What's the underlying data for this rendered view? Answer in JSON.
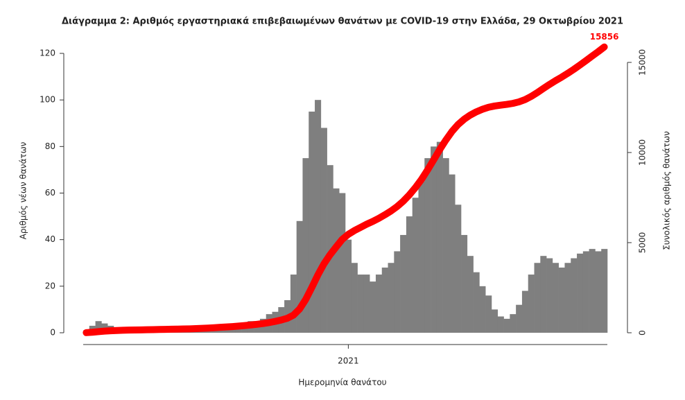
{
  "chart_data": {
    "type": "bar",
    "title": "Διάγραμμα 2: Αριθμός εργαστηριακά επιβεβαιωμένων θανάτων με COVID-19 στην Ελλάδα, 29 Οκτωβρίου 2021",
    "x_label": "Ημερομηνία θανάτου",
    "y_label": "Αριθμός νέων θανάτων",
    "y2_label": "Συνολικός αριθμός θανάτων",
    "categories": [
      null,
      null,
      null,
      null,
      null,
      null,
      null,
      null,
      null,
      null,
      null,
      null,
      null,
      null,
      null,
      null,
      null,
      null,
      null,
      null,
      null,
      null,
      null,
      null,
      null,
      null,
      null,
      null,
      null,
      null,
      null,
      null,
      null,
      null,
      null,
      null,
      null,
      null,
      null,
      null,
      null,
      null,
      null,
      "2021",
      null,
      null,
      null,
      null,
      null,
      null,
      null,
      null,
      null,
      null,
      null,
      null,
      null,
      null,
      null,
      null,
      null,
      null,
      null,
      null,
      null,
      null,
      null,
      null,
      null,
      null,
      null,
      null,
      null,
      null,
      null,
      null,
      null,
      null,
      null,
      null,
      null,
      null,
      null,
      null,
      null,
      null
    ],
    "series": [
      {
        "type": "bar",
        "color": "#7f7f7f",
        "values": [
          1,
          3,
          5,
          4,
          3,
          2,
          2,
          1,
          1,
          1,
          1,
          1,
          1,
          1,
          1,
          1,
          1,
          1,
          2,
          2,
          2,
          3,
          3,
          3,
          3,
          4,
          4,
          5,
          5,
          6,
          8,
          9,
          11,
          14,
          25,
          48,
          75,
          95,
          100,
          88,
          72,
          62,
          60,
          40,
          30,
          25,
          25,
          22,
          25,
          28,
          30,
          35,
          42,
          50,
          58,
          65,
          75,
          80,
          82,
          75,
          68,
          55,
          42,
          33,
          26,
          20,
          16,
          10,
          7,
          6,
          8,
          12,
          18,
          25,
          30,
          33,
          32,
          30,
          28,
          30,
          32,
          34,
          35,
          36,
          35,
          36
        ]
      },
      {
        "type": "line",
        "axis": "y2",
        "color": "#ff0000",
        "values": [
          7,
          28,
          63,
          91,
          112,
          126,
          140,
          147,
          154,
          161,
          168,
          175,
          182,
          189,
          196,
          203,
          210,
          217,
          231,
          245,
          259,
          280,
          301,
          322,
          343,
          371,
          399,
          434,
          469,
          511,
          567,
          630,
          707,
          805,
          980,
          1316,
          1841,
          2506,
          3206,
          3822,
          4326,
          4760,
          5180,
          5460,
          5670,
          5845,
          6020,
          6174,
          6349,
          6545,
          6755,
          7000,
          7294,
          7644,
          8050,
          8505,
          9030,
          9590,
          10164,
          10689,
          11165,
          11550,
          11844,
          12075,
          12257,
          12397,
          12509,
          12579,
          12628,
          12670,
          12726,
          12810,
          12936,
          13111,
          13321,
          13552,
          13776,
          13986,
          14182,
          14392,
          14616,
          14854,
          15099,
          15351,
          15596,
          15856
        ]
      }
    ],
    "ylim": [
      0,
      120
    ],
    "yticks": [
      0,
      20,
      40,
      60,
      80,
      100,
      120
    ],
    "y2lim": [
      0,
      15500
    ],
    "y2ticks": [
      0,
      5000,
      10000,
      15000
    ]
  }
}
